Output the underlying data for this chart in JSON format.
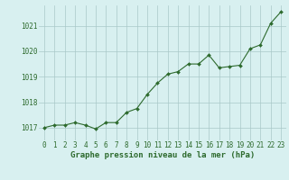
{
  "x": [
    0,
    1,
    2,
    3,
    4,
    5,
    6,
    7,
    8,
    9,
    10,
    11,
    12,
    13,
    14,
    15,
    16,
    17,
    18,
    19,
    20,
    21,
    22,
    23
  ],
  "y": [
    1017.0,
    1017.1,
    1017.1,
    1017.2,
    1017.1,
    1016.95,
    1017.2,
    1017.2,
    1017.6,
    1017.75,
    1018.3,
    1018.75,
    1019.1,
    1019.2,
    1019.5,
    1019.5,
    1019.85,
    1019.35,
    1019.4,
    1019.45,
    1020.1,
    1020.25,
    1021.1,
    1021.55
  ],
  "line_color": "#2d6a2d",
  "marker": "D",
  "marker_size": 2.0,
  "linewidth": 0.8,
  "xlabel": "Graphe pression niveau de la mer (hPa)",
  "xlabel_fontsize": 6.5,
  "xlabel_fontweight": "bold",
  "background_color": "#d8f0f0",
  "grid_color": "#aac8c8",
  "tick_color": "#2d6a2d",
  "tick_fontsize": 5.5,
  "ylim": [
    1016.5,
    1021.8
  ],
  "yticks": [
    1017,
    1018,
    1019,
    1020,
    1021
  ],
  "xlim": [
    -0.5,
    23.5
  ],
  "xticks": [
    0,
    1,
    2,
    3,
    4,
    5,
    6,
    7,
    8,
    9,
    10,
    11,
    12,
    13,
    14,
    15,
    16,
    17,
    18,
    19,
    20,
    21,
    22,
    23
  ]
}
